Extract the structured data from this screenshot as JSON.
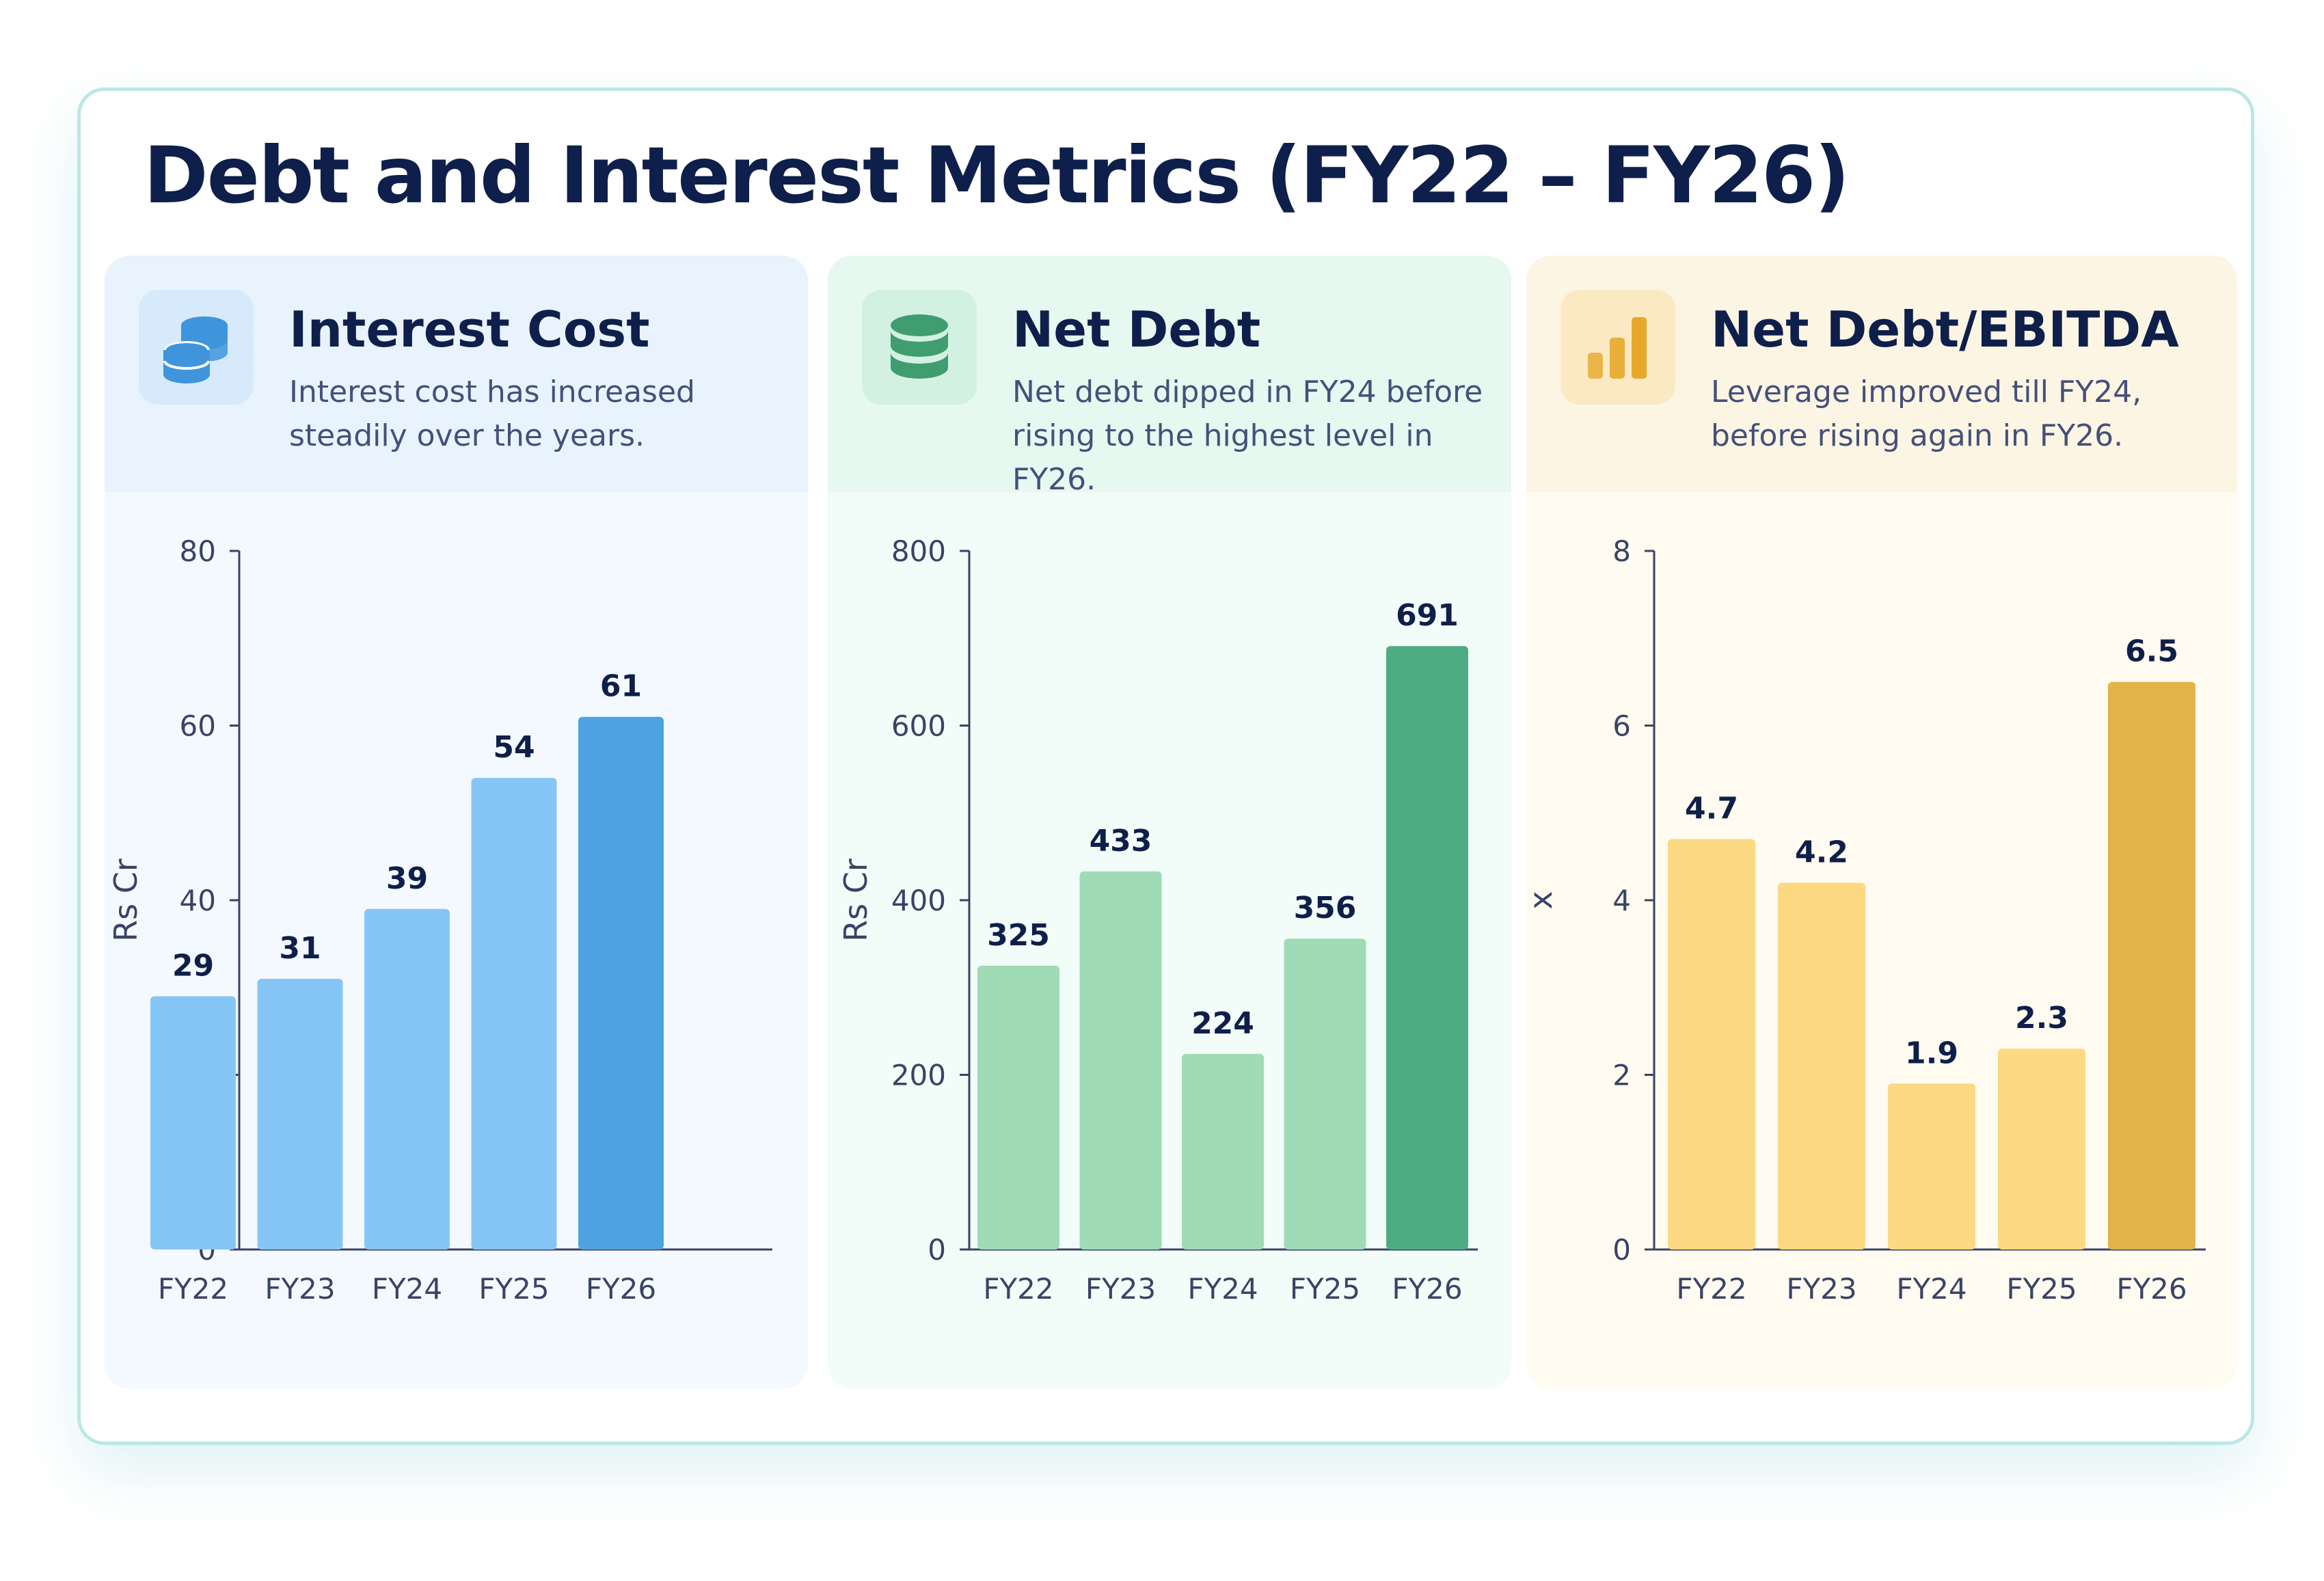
{
  "title": "Debt and Interest Metrics (FY22 – FY26)",
  "chart_data": [
    {
      "type": "bar",
      "title": "Interest Cost",
      "subtitle": "Interest cost has increased steadily over the years.",
      "icon": "coins-stack-icon",
      "categories": [
        "FY22",
        "FY23",
        "FY24",
        "FY25",
        "FY26"
      ],
      "values": [
        29,
        31,
        39,
        54,
        61
      ],
      "data_labels": [
        "29",
        "31",
        "39",
        "54",
        "61"
      ],
      "xlabel": "",
      "ylabel": "Rs Cr",
      "ylim": [
        0,
        80
      ],
      "yticks": [
        "0",
        "20",
        "40",
        "60",
        "80"
      ],
      "grid": false,
      "colors": {
        "bar": "#86c6f6",
        "highlight": "#4ea3e2",
        "head_bg": "#e9f3fe",
        "body_bg": "#f4f9ff",
        "icon_bg": "#d6eafc",
        "icon": "#3f95dc"
      }
    },
    {
      "type": "bar",
      "title": "Net Debt",
      "subtitle": "Net debt dipped in FY24 before rising to the highest level in FY26.",
      "icon": "database-icon",
      "categories": [
        "FY22",
        "FY23",
        "FY24",
        "FY25",
        "FY26"
      ],
      "values": [
        325,
        433,
        224,
        356,
        691
      ],
      "data_labels": [
        "325",
        "433",
        "224",
        "356",
        "691"
      ],
      "xlabel": "",
      "ylabel": "Rs Cr",
      "ylim": [
        0,
        800
      ],
      "yticks": [
        "0",
        "200",
        "400",
        "600",
        "800"
      ],
      "grid": false,
      "colors": {
        "bar": "#9fdbb6",
        "highlight": "#4fac82",
        "head_bg": "#e6f8f0",
        "body_bg": "#f2fcf8",
        "icon_bg": "#d3f1e1",
        "icon": "#3f9d70"
      }
    },
    {
      "type": "bar",
      "title": "Net Debt/EBITDA",
      "subtitle": "Leverage improved till FY24, before rising again in FY26.",
      "icon": "bar-chart-icon",
      "categories": [
        "FY22",
        "FY23",
        "FY24",
        "FY25",
        "FY26"
      ],
      "values": [
        4.7,
        4.2,
        1.9,
        2.3,
        6.5
      ],
      "data_labels": [
        "4.7",
        "4.2",
        "1.9",
        "2.3",
        "6.5"
      ],
      "xlabel": "",
      "ylabel": "x",
      "ylim": [
        0,
        8
      ],
      "yticks": [
        "0",
        "2",
        "4",
        "6",
        "8"
      ],
      "grid": false,
      "colors": {
        "bar": "#fcd982",
        "highlight": "#e3b44a",
        "head_bg": "#fdf5e3",
        "body_bg": "#fffbf0",
        "icon_bg": "#fbe9c3",
        "icon": "#e6a92a"
      }
    }
  ]
}
